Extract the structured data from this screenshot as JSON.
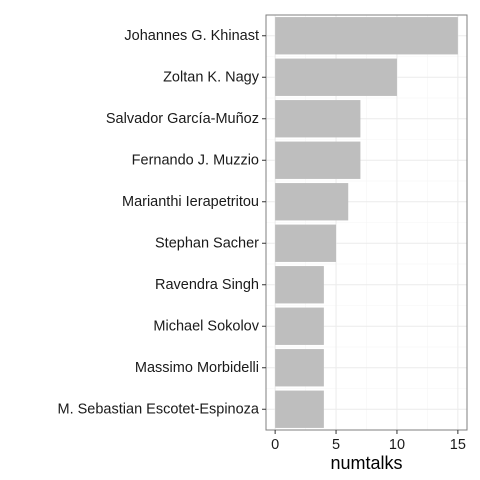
{
  "chart_data": {
    "type": "bar",
    "orientation": "horizontal",
    "categories": [
      "Johannes G. Khinast",
      "Zoltan K. Nagy",
      "Salvador García-Muñoz",
      "Fernando J. Muzzio",
      "Marianthi Ierapetritou",
      "Stephan Sacher",
      "Ravendra Singh",
      "Michael Sokolov",
      "Massimo Morbidelli",
      "M. Sebastian Escotet-Espinoza"
    ],
    "values": [
      15,
      10,
      7,
      7,
      6,
      5,
      4,
      4,
      4,
      4
    ],
    "title": "",
    "xlabel": "numtalks",
    "ylabel": "",
    "xlim": [
      -0.75,
      15.75
    ],
    "xticks": [
      0,
      5,
      10,
      15
    ],
    "xtick_labels": [
      "0",
      "5",
      "10",
      "15"
    ],
    "grid": true,
    "legend": "none",
    "colors": {
      "bar": "#bebebe",
      "panel_border": "#7f7f7f",
      "grid_major": "#ebebeb",
      "grid_minor": "#f5f5f5",
      "tick": "#333333"
    }
  }
}
